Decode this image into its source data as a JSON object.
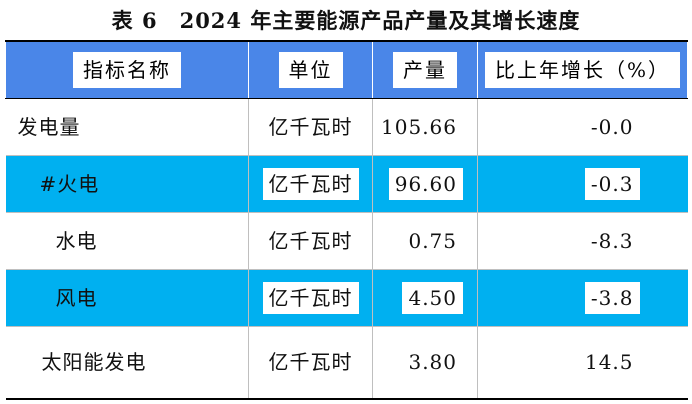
{
  "title": "表 6　2024 年主要能源产品产量及其增长速度",
  "headers": {
    "name": "指标名称",
    "unit": "单位",
    "output": "产量",
    "growth": "比上年增长（%）"
  },
  "rows": [
    {
      "name": "发电量",
      "unit": "亿千瓦时",
      "output": "105.66",
      "growth": "-0.0"
    },
    {
      "name": "#火电",
      "unit": "亿千瓦时",
      "output": "96.60",
      "growth": "-0.3"
    },
    {
      "name": "水电",
      "unit": "亿千瓦时",
      "output": "0.75",
      "growth": "-8.3"
    },
    {
      "name": "风电",
      "unit": "亿千瓦时",
      "output": "4.50",
      "growth": "-3.8"
    },
    {
      "name": "太阳能发电",
      "unit": "亿千瓦时",
      "output": "3.80",
      "growth": "14.5"
    }
  ],
  "colors": {
    "header_bg": "#4a86e8",
    "highlight_row": "#00b0f0"
  }
}
